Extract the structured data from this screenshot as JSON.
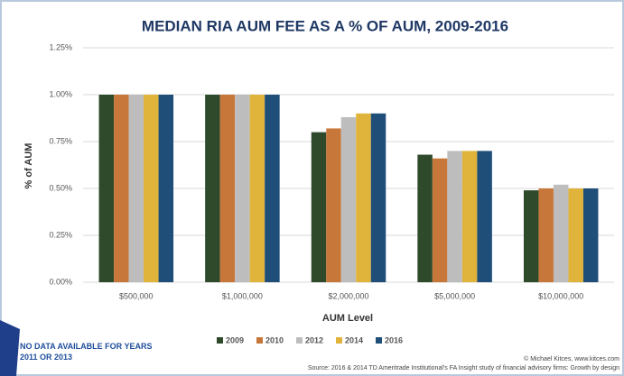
{
  "chart_data": {
    "type": "bar",
    "title": "MEDIAN RIA AUM FEE AS A % OF AUM, 2009-2016",
    "y_label": "% of AUM",
    "x_label": "AUM Level",
    "categories": [
      "$500,000",
      "$1,000,000",
      "$2,000,000",
      "$5,000,000",
      "$10,000,000"
    ],
    "series": [
      {
        "name": "2009",
        "color": "#2e4a2a",
        "values": [
          1.0,
          1.0,
          0.8,
          0.68,
          0.49
        ]
      },
      {
        "name": "2010",
        "color": "#c8773a",
        "values": [
          1.0,
          1.0,
          0.82,
          0.66,
          0.5
        ]
      },
      {
        "name": "2012",
        "color": "#bdbdbd",
        "values": [
          1.0,
          1.0,
          0.88,
          0.7,
          0.52
        ]
      },
      {
        "name": "2014",
        "color": "#e0b33a",
        "values": [
          1.0,
          1.0,
          0.9,
          0.7,
          0.5
        ]
      },
      {
        "name": "2016",
        "color": "#1f4e79",
        "values": [
          1.0,
          1.0,
          0.9,
          0.7,
          0.5
        ]
      }
    ],
    "ylim": [
      0,
      1.25
    ],
    "yticks": [
      {
        "value": 0,
        "label": "0.00%"
      },
      {
        "value": 0.25,
        "label": "0.25%"
      },
      {
        "value": 0.5,
        "label": "0.50%"
      },
      {
        "value": 0.75,
        "label": "0.75%"
      },
      {
        "value": 1.0,
        "label": "1.00%"
      },
      {
        "value": 1.25,
        "label": "1.25%"
      }
    ],
    "grid": true,
    "note": "NO DATA AVAILABLE FOR YEARS 2011 OR 2013",
    "credit": "© Michael Kitces, www.kitces.com",
    "source": "Source: 2016 & 2014 TD Ameritrade Institutional's FA Insight study of financial advisory firms: Growth by design"
  }
}
